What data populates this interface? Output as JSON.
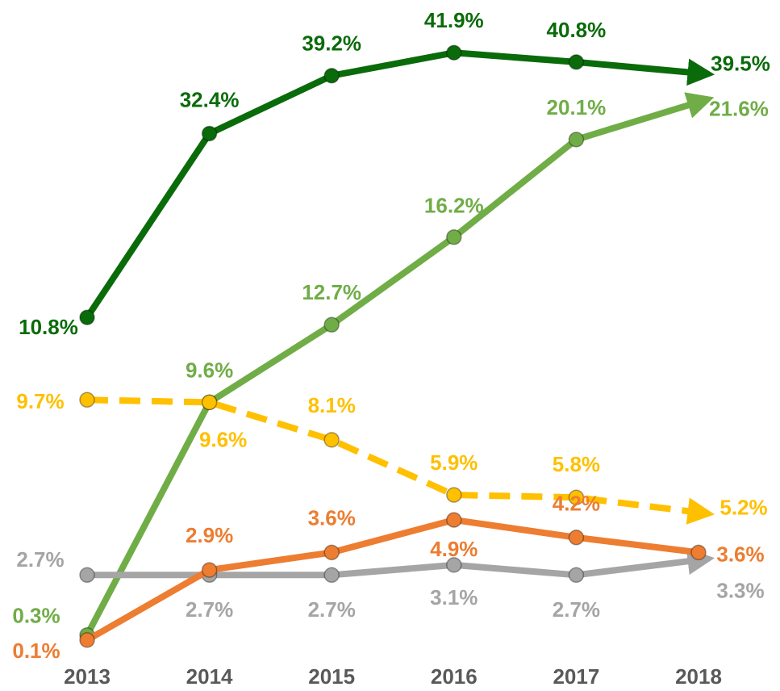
{
  "chart_data": {
    "type": "line",
    "categories": [
      "2013",
      "2014",
      "2015",
      "2016",
      "2017",
      "2018"
    ],
    "ylim": [
      0,
      25
    ],
    "y2lim": [
      -27.4,
      46.1
    ],
    "series": [
      {
        "name": null,
        "color": "#0a6b0a",
        "axis": "y2",
        "arrow": true,
        "dashed": false,
        "values": [
          10.8,
          32.4,
          39.2,
          41.9,
          40.8,
          39.5
        ],
        "value_labels": [
          "10.8%",
          "32.4%",
          "39.2%",
          "41.9%",
          "40.8%",
          "39.5%"
        ]
      },
      {
        "name": null,
        "color": "#70ad47",
        "arrow": true,
        "dashed": false,
        "values": [
          0.3,
          9.6,
          12.7,
          16.2,
          20.1,
          21.6
        ],
        "value_labels": [
          "0.3%",
          "9.6%",
          "12.7%",
          "16.2%",
          "20.1%",
          "21.6%"
        ]
      },
      {
        "name": null,
        "color": "#ffc000",
        "arrow": true,
        "dashed": true,
        "values": [
          9.7,
          9.6,
          8.1,
          5.9,
          5.8,
          5.2
        ],
        "value_labels": [
          "9.7%",
          "9.6%",
          "8.1%",
          "5.9%",
          "5.8%",
          "5.2%"
        ]
      },
      {
        "name": null,
        "color": "#a5a5a5",
        "arrow": true,
        "dashed": false,
        "values": [
          2.7,
          2.7,
          2.7,
          3.1,
          2.7,
          3.3
        ],
        "value_labels": [
          "2.7%",
          "2.7%",
          "2.7%",
          "3.1%",
          "2.7%",
          "3.3%"
        ]
      },
      {
        "name": null,
        "color": "#ed7d31",
        "arrow": false,
        "dashed": false,
        "values": [
          0.1,
          2.9,
          3.6,
          4.9,
          4.2,
          3.6
        ],
        "value_labels": [
          "0.1%",
          "2.9%",
          "3.6%",
          "4.9%",
          "4.2%",
          "3.6%"
        ]
      }
    ]
  }
}
